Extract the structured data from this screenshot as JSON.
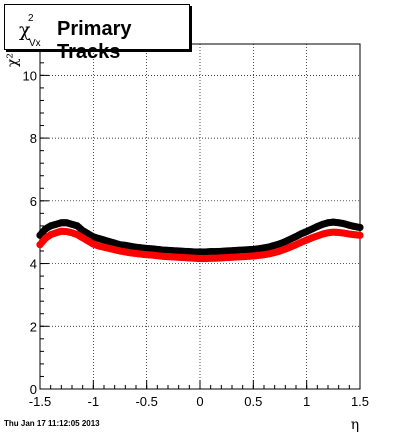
{
  "title": {
    "chi_symbol": "χ",
    "superscript": "2",
    "subscript": "Vx",
    "text": "Primary Tracks"
  },
  "footer_text": "Thu Jan 17 11:12:05 2013",
  "chart_data": {
    "type": "scatter",
    "title": "Primary Tracks",
    "xlabel": "η",
    "ylabel": "χ²",
    "xlim": [
      -1.5,
      1.5
    ],
    "ylim": [
      0,
      11
    ],
    "x_ticks": [
      "-1.5",
      "-1",
      "-0.5",
      "0",
      "0.5",
      "1",
      "1.5"
    ],
    "y_ticks": [
      "0",
      "2",
      "4",
      "6",
      "8",
      "10"
    ],
    "grid": true,
    "x": [
      -1.5,
      -1.45,
      -1.4,
      -1.35,
      -1.3,
      -1.25,
      -1.2,
      -1.15,
      -1.1,
      -1.05,
      -1.0,
      -0.95,
      -0.9,
      -0.85,
      -0.8,
      -0.75,
      -0.7,
      -0.65,
      -0.6,
      -0.55,
      -0.5,
      -0.45,
      -0.4,
      -0.35,
      -0.3,
      -0.25,
      -0.2,
      -0.15,
      -0.1,
      -0.05,
      0.0,
      0.05,
      0.1,
      0.15,
      0.2,
      0.25,
      0.3,
      0.35,
      0.4,
      0.45,
      0.5,
      0.55,
      0.6,
      0.65,
      0.7,
      0.75,
      0.8,
      0.85,
      0.9,
      0.95,
      1.0,
      1.05,
      1.1,
      1.15,
      1.2,
      1.25,
      1.3,
      1.35,
      1.4,
      1.45,
      1.5
    ],
    "series": [
      {
        "color": "#000000",
        "values": [
          4.9,
          5.1,
          5.2,
          5.25,
          5.3,
          5.3,
          5.25,
          5.2,
          5.05,
          4.95,
          4.85,
          4.8,
          4.75,
          4.7,
          4.65,
          4.6,
          4.58,
          4.55,
          4.52,
          4.5,
          4.48,
          4.47,
          4.45,
          4.43,
          4.42,
          4.41,
          4.4,
          4.39,
          4.38,
          4.37,
          4.37,
          4.37,
          4.38,
          4.38,
          4.39,
          4.4,
          4.41,
          4.42,
          4.43,
          4.44,
          4.45,
          4.47,
          4.5,
          4.53,
          4.58,
          4.63,
          4.7,
          4.78,
          4.86,
          4.95,
          5.02,
          5.1,
          5.18,
          5.25,
          5.3,
          5.32,
          5.3,
          5.27,
          5.22,
          5.18,
          5.15
        ]
      },
      {
        "color": "#ff0000",
        "values": [
          4.6,
          4.8,
          4.92,
          4.98,
          5.03,
          5.02,
          4.98,
          4.92,
          4.82,
          4.72,
          4.62,
          4.56,
          4.52,
          4.48,
          4.44,
          4.4,
          4.37,
          4.34,
          4.32,
          4.3,
          4.28,
          4.27,
          4.25,
          4.23,
          4.22,
          4.21,
          4.2,
          4.19,
          4.18,
          4.17,
          4.16,
          4.16,
          4.17,
          4.17,
          4.18,
          4.19,
          4.2,
          4.21,
          4.22,
          4.23,
          4.24,
          4.26,
          4.28,
          4.31,
          4.35,
          4.4,
          4.46,
          4.53,
          4.6,
          4.68,
          4.75,
          4.82,
          4.88,
          4.94,
          4.98,
          5.0,
          4.99,
          4.97,
          4.94,
          4.92,
          4.9
        ]
      }
    ]
  }
}
